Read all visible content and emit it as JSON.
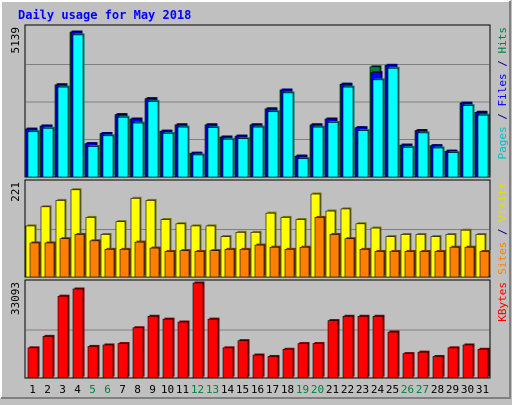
{
  "chart_data": {
    "type": "bar",
    "title": "Daily usage for May 2018",
    "categories": [
      "1",
      "2",
      "3",
      "4",
      "5",
      "6",
      "7",
      "8",
      "9",
      "10",
      "11",
      "12",
      "13",
      "14",
      "15",
      "16",
      "17",
      "18",
      "19",
      "20",
      "21",
      "22",
      "23",
      "24",
      "25",
      "26",
      "27",
      "28",
      "29",
      "30",
      "31"
    ],
    "weekend_categories": [
      "5",
      "6",
      "12",
      "13",
      "19",
      "20",
      "26",
      "27"
    ],
    "panels": [
      {
        "id": "pages-files-hits",
        "max_label": "5139",
        "ylim": [
          0,
          5139
        ],
        "series": [
          {
            "name": "Hits",
            "color": "#008040",
            "values": [
              1650,
              1760,
              3180,
              5000,
              1150,
              1500,
              2150,
              2000,
              2700,
              1580,
              1800,
              820,
              1800,
              1380,
              1410,
              1800,
              2350,
              3000,
              720,
              1800,
              2000,
              3200,
              1700,
              3800,
              3850,
              1100,
              1600,
              1080,
              890,
              2550,
              2230
            ]
          },
          {
            "name": "Files",
            "color": "#0000ff",
            "values": [
              1650,
              1760,
              3180,
              5000,
              1150,
              1500,
              2150,
              2000,
              2700,
              1580,
              1800,
              820,
              1800,
              1380,
              1410,
              1800,
              2350,
              3000,
              720,
              1800,
              2000,
              3200,
              1700,
              3600,
              3850,
              1100,
              1600,
              1080,
              890,
              2550,
              2230
            ]
          },
          {
            "name": "Pages",
            "color": "#00ffff",
            "values": [
              1560,
              1680,
              3100,
              4900,
              1050,
              1420,
              2060,
              1860,
              2600,
              1500,
              1720,
              760,
              1700,
              1300,
              1320,
              1720,
              2250,
              2900,
              630,
              1720,
              1880,
              3100,
              1600,
              3350,
              3750,
              1020,
              1520,
              1000,
              840,
              2460,
              2130
            ]
          }
        ]
      },
      {
        "id": "visits-sites",
        "max_label": "221",
        "ylim": [
          0,
          221
        ],
        "series": [
          {
            "name": "Visits",
            "color": "#ffff00",
            "values": [
              120,
              165,
              180,
              205,
              140,
              100,
              130,
              185,
              180,
              135,
              125,
              120,
              120,
              95,
              105,
              105,
              150,
              140,
              135,
              195,
              155,
              160,
              125,
              115,
              95,
              100,
              100,
              95,
              100,
              110,
              100
            ]
          },
          {
            "name": "Sites",
            "color": "#ff8000",
            "values": [
              80,
              80,
              90,
              100,
              85,
              65,
              65,
              82,
              68,
              60,
              62,
              60,
              62,
              65,
              65,
              75,
              70,
              65,
              70,
              140,
              100,
              90,
              65,
              60,
              60,
              60,
              60,
              60,
              70,
              70,
              60
            ]
          }
        ]
      },
      {
        "id": "kbytes",
        "max_label": "33093",
        "ylim": [
          0,
          33093
        ],
        "series": [
          {
            "name": "KBytes",
            "color": "#ff0000",
            "values": [
              10500,
              14500,
              28500,
              31000,
              11000,
              11500,
              12000,
              17500,
              21500,
              20500,
              19500,
              33093,
              20500,
              10500,
              13000,
              8000,
              7500,
              10000,
              12000,
              12000,
              20000,
              21500,
              21500,
              21500,
              16000,
              8500,
              9000,
              7500,
              10500,
              11500,
              10000
            ]
          }
        ]
      }
    ],
    "right_labels": [
      {
        "parts": [
          {
            "text": "Pages",
            "color": "#00c0c0"
          },
          {
            "text": " / ",
            "color": "#000080"
          },
          {
            "text": "Files",
            "color": "#0000ff"
          },
          {
            "text": " / ",
            "color": "#000080"
          },
          {
            "text": "Hits",
            "color": "#008040"
          }
        ]
      },
      {
        "parts": [
          {
            "text": "Sites",
            "color": "#ff8000"
          },
          {
            "text": " / ",
            "color": "#000080"
          },
          {
            "text": "Visits",
            "color": "#e0e000"
          }
        ]
      },
      {
        "parts": [
          {
            "text": "KBytes",
            "color": "#ff0000"
          }
        ]
      }
    ],
    "colors": {
      "background": "#c0c0c0",
      "title": "#0000ff",
      "grid": "#808080",
      "weekday_label": "#000000",
      "weekend_label": "#008040"
    }
  }
}
